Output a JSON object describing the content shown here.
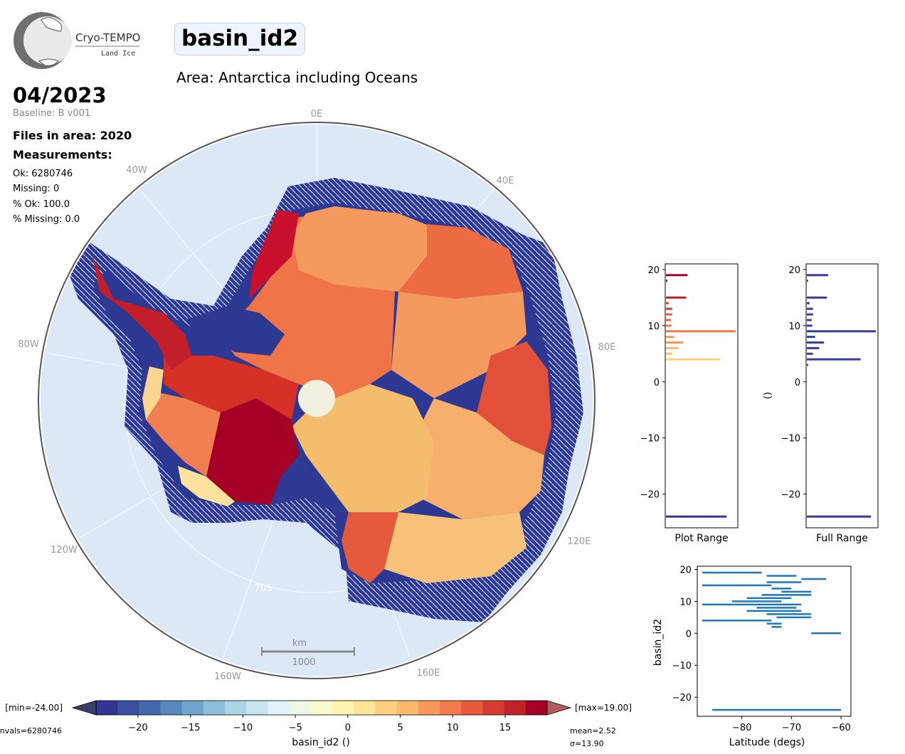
{
  "logo": {
    "line1": "Cryo-TEMPO",
    "line2": "Land Ice"
  },
  "title": "basin_id2",
  "area": "Area: Antarctica including Oceans",
  "date": "04/2023",
  "baseline": "Baseline: B v001",
  "files": "Files in area: 2020",
  "measurements": "Measurements:",
  "stats": [
    "Ok: 6280746",
    "Missing: 0",
    "% Ok: 100.0",
    "% Missing: 0.0"
  ],
  "map": {
    "lon_labels": [
      "0E",
      "40E",
      "80E",
      "120E",
      "160E",
      "160W",
      "120W",
      "80W",
      "40W"
    ],
    "lat_label": "70S",
    "scale_unit": "km",
    "scale_value": "1000"
  },
  "colorbar": {
    "min_label": "[min=-24.00]",
    "max_label": "[max=19.00]",
    "nvals_label": "nvals=6280746",
    "mean_label": "mean=2.52",
    "sigma_label": "σ=13.90",
    "xlabel": "basin_id2 ()",
    "ticks": [
      -20,
      -15,
      -10,
      -5,
      0,
      5,
      10,
      15
    ],
    "range": [
      -24,
      19
    ],
    "colors": [
      "#313695",
      "#3a4fa0",
      "#4468ad",
      "#5588bb",
      "#6fa5cb",
      "#8ebfda",
      "#abd5e6",
      "#c6e5ee",
      "#e0f3f8",
      "#eef7e6",
      "#fafbcd",
      "#fff4b0",
      "#fee597",
      "#fed07f",
      "#fdba6d",
      "#f9985b",
      "#f47b4b",
      "#e75b3c",
      "#d73c30",
      "#c0222a",
      "#a50026"
    ]
  },
  "chart_data": [
    {
      "type": "bar",
      "orientation": "horizontal",
      "xlabel": "Plot Range",
      "ylim": [
        -26,
        21
      ],
      "yticks": [
        -20,
        -10,
        0,
        10,
        20
      ],
      "bars": [
        {
          "y": 19,
          "value": 0.31
        },
        {
          "y": 18,
          "value": 0.02
        },
        {
          "y": 15,
          "value": 0.29
        },
        {
          "y": 14,
          "value": 0.04
        },
        {
          "y": 13,
          "value": 0.09
        },
        {
          "y": 12,
          "value": 0.09
        },
        {
          "y": 11,
          "value": 0.07
        },
        {
          "y": 10,
          "value": 0.08
        },
        {
          "y": 9,
          "value": 1.0
        },
        {
          "y": 8,
          "value": 0.12
        },
        {
          "y": 7,
          "value": 0.25
        },
        {
          "y": 6,
          "value": 0.18
        },
        {
          "y": 5,
          "value": 0.09
        },
        {
          "y": 4,
          "value": 0.78
        },
        {
          "y": -24,
          "value": 0.87
        }
      ]
    },
    {
      "type": "bar",
      "orientation": "horizontal",
      "xlabel": "Full Range",
      "ylabel": "()",
      "ylim": [
        -26,
        21
      ],
      "yticks": [
        -20,
        -10,
        0,
        10,
        20
      ],
      "bars": [
        {
          "y": 19,
          "value": 0.31
        },
        {
          "y": 18,
          "value": 0.02
        },
        {
          "y": 15,
          "value": 0.29
        },
        {
          "y": 14,
          "value": 0.04
        },
        {
          "y": 13,
          "value": 0.09
        },
        {
          "y": 12,
          "value": 0.09
        },
        {
          "y": 11,
          "value": 0.07
        },
        {
          "y": 10,
          "value": 0.08
        },
        {
          "y": 9,
          "value": 1.0
        },
        {
          "y": 8,
          "value": 0.12
        },
        {
          "y": 7,
          "value": 0.25
        },
        {
          "y": 6,
          "value": 0.18
        },
        {
          "y": 5,
          "value": 0.09
        },
        {
          "y": 4,
          "value": 0.78
        },
        {
          "y": 3,
          "value": 0.02
        },
        {
          "y": -24,
          "value": 0.93
        }
      ]
    },
    {
      "type": "scatter",
      "xlabel": "Latitude (degs)",
      "ylabel": "basin_id2",
      "xlim": [
        -89,
        -58
      ],
      "ylim": [
        -26,
        21
      ],
      "xticks": [
        -80,
        -70,
        -60
      ],
      "yticks": [
        -20,
        -10,
        0,
        10,
        20
      ],
      "color": "#1f77b4",
      "segments": [
        {
          "y": 19,
          "x": [
            -88,
            -76
          ]
        },
        {
          "y": 18,
          "x": [
            -75,
            -69
          ]
        },
        {
          "y": 17,
          "x": [
            -68,
            -63
          ]
        },
        {
          "y": 16,
          "x": [
            -75,
            -68
          ]
        },
        {
          "y": 15,
          "x": [
            -88,
            -74
          ]
        },
        {
          "y": 14,
          "x": [
            -74,
            -70
          ]
        },
        {
          "y": 13,
          "x": [
            -72,
            -66
          ]
        },
        {
          "y": 12,
          "x": [
            -76,
            -66
          ]
        },
        {
          "y": 11,
          "x": [
            -79,
            -70
          ]
        },
        {
          "y": 10,
          "x": [
            -82,
            -72
          ]
        },
        {
          "y": 9,
          "x": [
            -88,
            -68
          ]
        },
        {
          "y": 8,
          "x": [
            -77,
            -69
          ]
        },
        {
          "y": 7,
          "x": [
            -79,
            -68
          ]
        },
        {
          "y": 6,
          "x": [
            -75,
            -66
          ]
        },
        {
          "y": 5,
          "x": [
            -73,
            -66
          ]
        },
        {
          "y": 4,
          "x": [
            -88,
            -74
          ]
        },
        {
          "y": 3,
          "x": [
            -75,
            -72
          ]
        },
        {
          "y": 2,
          "x": [
            -74,
            -72
          ]
        },
        {
          "y": 0,
          "x": [
            -66,
            -60
          ]
        },
        {
          "y": -24,
          "x": [
            -86,
            -60
          ]
        }
      ]
    }
  ]
}
